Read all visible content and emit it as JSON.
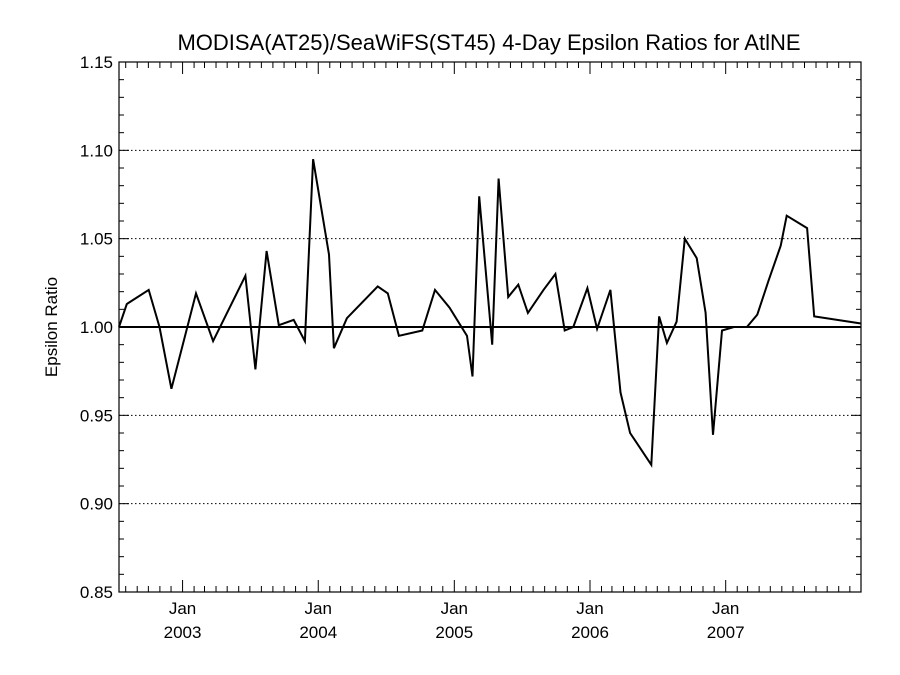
{
  "chart_data": {
    "type": "line",
    "title": "MODISA(AT25)/SeaWiFS(ST45) 4-Day Epsilon Ratios for AtlNE",
    "xlabel": "",
    "ylabel": "Epsilon Ratio",
    "ylim": [
      0.85,
      1.15
    ],
    "y_ticks": [
      "0.85",
      "0.90",
      "0.95",
      "1.00",
      "1.05",
      "1.10",
      "1.15"
    ],
    "y_gridlines": [
      0.9,
      0.95,
      1.05,
      1.1
    ],
    "reference_line": 1.0,
    "xlim": [
      "2002-07-14",
      "2007-12-31"
    ],
    "x_ticks": [
      {
        "date": "2003-01-01",
        "month": "Jan",
        "year": "2003"
      },
      {
        "date": "2004-01-01",
        "month": "Jan",
        "year": "2004"
      },
      {
        "date": "2005-01-01",
        "month": "Jan",
        "year": "2005"
      },
      {
        "date": "2006-01-01",
        "month": "Jan",
        "year": "2006"
      },
      {
        "date": "2007-01-01",
        "month": "Jan",
        "year": "2007"
      }
    ],
    "grid": "dotted horizontal",
    "line_color": "#000000",
    "series": [
      {
        "points": [
          [
            "2002-07-14",
            1.0
          ],
          [
            "2002-08-04",
            1.013
          ],
          [
            "2002-10-02",
            1.021
          ],
          [
            "2002-10-31",
            1.0
          ],
          [
            "2002-12-02",
            0.965
          ],
          [
            "2003-02-06",
            1.019
          ],
          [
            "2003-03-24",
            0.992
          ],
          [
            "2003-06-19",
            1.029
          ],
          [
            "2003-07-16",
            0.976
          ],
          [
            "2003-08-15",
            1.043
          ],
          [
            "2003-09-17",
            1.001
          ],
          [
            "2003-10-27",
            1.004
          ],
          [
            "2003-11-26",
            0.992
          ],
          [
            "2003-12-18",
            1.095
          ],
          [
            "2004-01-30",
            1.041
          ],
          [
            "2004-02-12",
            0.988
          ],
          [
            "2004-03-18",
            1.005
          ],
          [
            "2004-06-09",
            1.023
          ],
          [
            "2004-07-06",
            1.019
          ],
          [
            "2004-08-05",
            0.995
          ],
          [
            "2004-10-07",
            0.998
          ],
          [
            "2004-11-10",
            1.021
          ],
          [
            "2004-12-19",
            1.011
          ],
          [
            "2005-02-04",
            0.995
          ],
          [
            "2005-02-19",
            0.972
          ],
          [
            "2005-03-09",
            1.074
          ],
          [
            "2005-04-13",
            0.99
          ],
          [
            "2005-04-30",
            1.084
          ],
          [
            "2005-05-26",
            1.017
          ],
          [
            "2005-06-22",
            1.024
          ],
          [
            "2005-07-18",
            1.008
          ],
          [
            "2005-08-29",
            1.021
          ],
          [
            "2005-09-30",
            1.03
          ],
          [
            "2005-10-25",
            0.998
          ],
          [
            "2005-11-17",
            1.0
          ],
          [
            "2005-12-25",
            1.022
          ],
          [
            "2006-01-20",
            0.999
          ],
          [
            "2006-02-25",
            1.021
          ],
          [
            "2006-03-24",
            0.963
          ],
          [
            "2006-04-19",
            0.94
          ],
          [
            "2006-06-15",
            0.922
          ],
          [
            "2006-07-06",
            1.006
          ],
          [
            "2006-07-27",
            0.991
          ],
          [
            "2006-08-22",
            1.003
          ],
          [
            "2006-09-13",
            1.05
          ],
          [
            "2006-10-15",
            1.039
          ],
          [
            "2006-11-08",
            1.008
          ],
          [
            "2006-11-28",
            0.939
          ],
          [
            "2006-12-22",
            0.998
          ],
          [
            "2007-01-23",
            1.0
          ],
          [
            "2007-02-27",
            1.0
          ],
          [
            "2007-03-27",
            1.007
          ],
          [
            "2007-04-26",
            1.026
          ],
          [
            "2007-05-29",
            1.046
          ],
          [
            "2007-06-14",
            1.063
          ],
          [
            "2007-08-08",
            1.056
          ],
          [
            "2007-08-27",
            1.006
          ],
          [
            "2007-12-31",
            1.002
          ]
        ]
      }
    ]
  }
}
